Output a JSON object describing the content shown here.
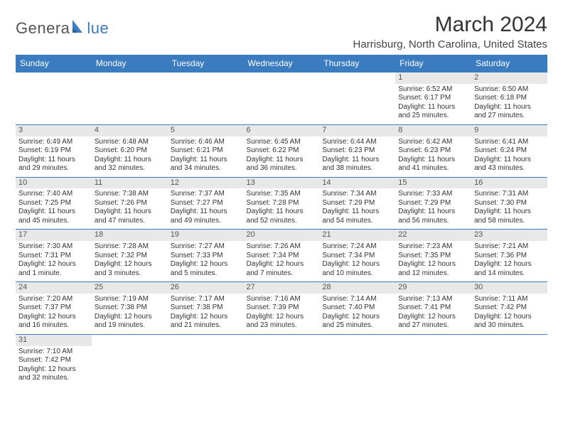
{
  "logo": {
    "text1": "Genera",
    "text2": "lue",
    "sail_color": "#3b7bbf",
    "text1_color": "#555555"
  },
  "title": "March 2024",
  "location": "Harrisburg, North Carolina, United States",
  "colors": {
    "header_bg": "#3b7bbf",
    "header_text": "#ffffff",
    "daynum_bg": "#e8e8e8",
    "border": "#3b7bbf"
  },
  "weekdays": [
    "Sunday",
    "Monday",
    "Tuesday",
    "Wednesday",
    "Thursday",
    "Friday",
    "Saturday"
  ],
  "weeks": [
    [
      null,
      null,
      null,
      null,
      null,
      {
        "n": "1",
        "r": "Sunrise: 6:52 AM",
        "s": "Sunset: 6:17 PM",
        "d": "Daylight: 11 hours and 25 minutes."
      },
      {
        "n": "2",
        "r": "Sunrise: 6:50 AM",
        "s": "Sunset: 6:18 PM",
        "d": "Daylight: 11 hours and 27 minutes."
      }
    ],
    [
      {
        "n": "3",
        "r": "Sunrise: 6:49 AM",
        "s": "Sunset: 6:19 PM",
        "d": "Daylight: 11 hours and 29 minutes."
      },
      {
        "n": "4",
        "r": "Sunrise: 6:48 AM",
        "s": "Sunset: 6:20 PM",
        "d": "Daylight: 11 hours and 32 minutes."
      },
      {
        "n": "5",
        "r": "Sunrise: 6:46 AM",
        "s": "Sunset: 6:21 PM",
        "d": "Daylight: 11 hours and 34 minutes."
      },
      {
        "n": "6",
        "r": "Sunrise: 6:45 AM",
        "s": "Sunset: 6:22 PM",
        "d": "Daylight: 11 hours and 36 minutes."
      },
      {
        "n": "7",
        "r": "Sunrise: 6:44 AM",
        "s": "Sunset: 6:23 PM",
        "d": "Daylight: 11 hours and 38 minutes."
      },
      {
        "n": "8",
        "r": "Sunrise: 6:42 AM",
        "s": "Sunset: 6:23 PM",
        "d": "Daylight: 11 hours and 41 minutes."
      },
      {
        "n": "9",
        "r": "Sunrise: 6:41 AM",
        "s": "Sunset: 6:24 PM",
        "d": "Daylight: 11 hours and 43 minutes."
      }
    ],
    [
      {
        "n": "10",
        "r": "Sunrise: 7:40 AM",
        "s": "Sunset: 7:25 PM",
        "d": "Daylight: 11 hours and 45 minutes."
      },
      {
        "n": "11",
        "r": "Sunrise: 7:38 AM",
        "s": "Sunset: 7:26 PM",
        "d": "Daylight: 11 hours and 47 minutes."
      },
      {
        "n": "12",
        "r": "Sunrise: 7:37 AM",
        "s": "Sunset: 7:27 PM",
        "d": "Daylight: 11 hours and 49 minutes."
      },
      {
        "n": "13",
        "r": "Sunrise: 7:35 AM",
        "s": "Sunset: 7:28 PM",
        "d": "Daylight: 11 hours and 52 minutes."
      },
      {
        "n": "14",
        "r": "Sunrise: 7:34 AM",
        "s": "Sunset: 7:29 PM",
        "d": "Daylight: 11 hours and 54 minutes."
      },
      {
        "n": "15",
        "r": "Sunrise: 7:33 AM",
        "s": "Sunset: 7:29 PM",
        "d": "Daylight: 11 hours and 56 minutes."
      },
      {
        "n": "16",
        "r": "Sunrise: 7:31 AM",
        "s": "Sunset: 7:30 PM",
        "d": "Daylight: 11 hours and 58 minutes."
      }
    ],
    [
      {
        "n": "17",
        "r": "Sunrise: 7:30 AM",
        "s": "Sunset: 7:31 PM",
        "d": "Daylight: 12 hours and 1 minute."
      },
      {
        "n": "18",
        "r": "Sunrise: 7:28 AM",
        "s": "Sunset: 7:32 PM",
        "d": "Daylight: 12 hours and 3 minutes."
      },
      {
        "n": "19",
        "r": "Sunrise: 7:27 AM",
        "s": "Sunset: 7:33 PM",
        "d": "Daylight: 12 hours and 5 minutes."
      },
      {
        "n": "20",
        "r": "Sunrise: 7:26 AM",
        "s": "Sunset: 7:34 PM",
        "d": "Daylight: 12 hours and 7 minutes."
      },
      {
        "n": "21",
        "r": "Sunrise: 7:24 AM",
        "s": "Sunset: 7:34 PM",
        "d": "Daylight: 12 hours and 10 minutes."
      },
      {
        "n": "22",
        "r": "Sunrise: 7:23 AM",
        "s": "Sunset: 7:35 PM",
        "d": "Daylight: 12 hours and 12 minutes."
      },
      {
        "n": "23",
        "r": "Sunrise: 7:21 AM",
        "s": "Sunset: 7:36 PM",
        "d": "Daylight: 12 hours and 14 minutes."
      }
    ],
    [
      {
        "n": "24",
        "r": "Sunrise: 7:20 AM",
        "s": "Sunset: 7:37 PM",
        "d": "Daylight: 12 hours and 16 minutes."
      },
      {
        "n": "25",
        "r": "Sunrise: 7:19 AM",
        "s": "Sunset: 7:38 PM",
        "d": "Daylight: 12 hours and 19 minutes."
      },
      {
        "n": "26",
        "r": "Sunrise: 7:17 AM",
        "s": "Sunset: 7:38 PM",
        "d": "Daylight: 12 hours and 21 minutes."
      },
      {
        "n": "27",
        "r": "Sunrise: 7:16 AM",
        "s": "Sunset: 7:39 PM",
        "d": "Daylight: 12 hours and 23 minutes."
      },
      {
        "n": "28",
        "r": "Sunrise: 7:14 AM",
        "s": "Sunset: 7:40 PM",
        "d": "Daylight: 12 hours and 25 minutes."
      },
      {
        "n": "29",
        "r": "Sunrise: 7:13 AM",
        "s": "Sunset: 7:41 PM",
        "d": "Daylight: 12 hours and 27 minutes."
      },
      {
        "n": "30",
        "r": "Sunrise: 7:11 AM",
        "s": "Sunset: 7:42 PM",
        "d": "Daylight: 12 hours and 30 minutes."
      }
    ],
    [
      {
        "n": "31",
        "r": "Sunrise: 7:10 AM",
        "s": "Sunset: 7:42 PM",
        "d": "Daylight: 12 hours and 32 minutes."
      },
      null,
      null,
      null,
      null,
      null,
      null
    ]
  ]
}
